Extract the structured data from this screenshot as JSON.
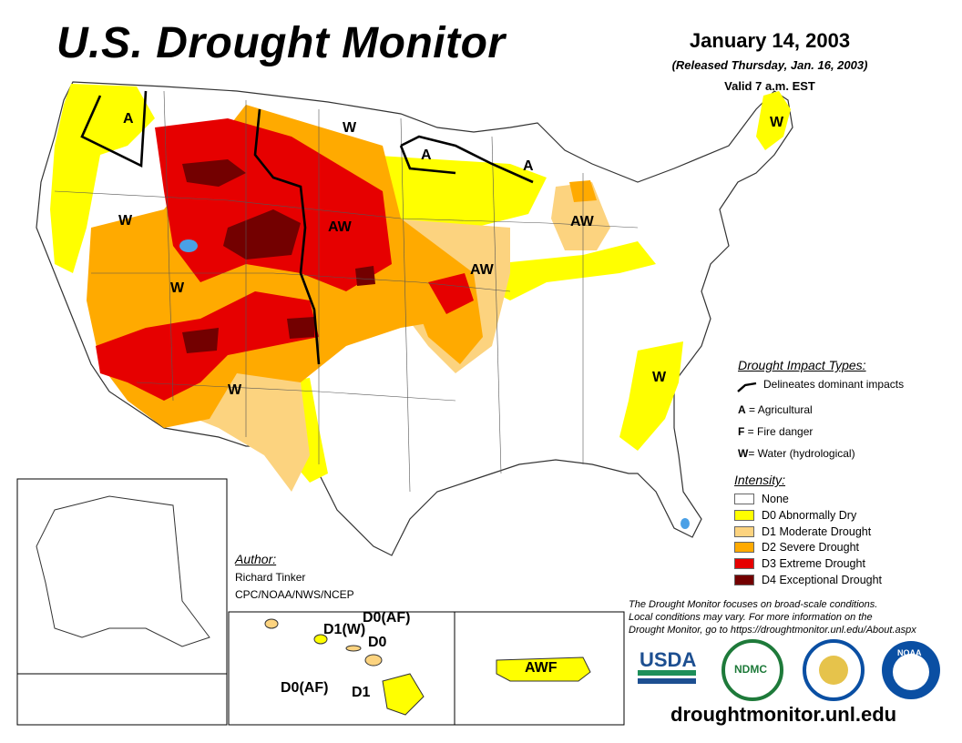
{
  "header": {
    "title": "U.S. Drought Monitor",
    "date": "January 14, 2003",
    "released": "(Released Thursday, Jan. 16, 2003)",
    "valid": "Valid 7 a.m. EST"
  },
  "map_labels": {
    "a_montana": "A",
    "w_north_dakota": "W",
    "a_minnesota": "A",
    "a_upper_michigan": "A",
    "w_maine": "W",
    "w_oregon": "W",
    "aw_nebraska": "AW",
    "aw_michigan": "AW",
    "aw_iowa": "AW",
    "w_nevada": "W",
    "w_new_mexico": "W",
    "w_carolinas": "W"
  },
  "hawaii_labels": {
    "d0_af_top": "D0(AF)",
    "d1_w": "D1(W)",
    "d0": "D0",
    "d0_af_bottom": "D0(AF)",
    "d1": "D1"
  },
  "puerto_rico_label": "AWF",
  "impact_types": {
    "title": "Drought Impact Types:",
    "delineates": "Delineates dominant impacts",
    "items": [
      {
        "key": "A",
        "sep": " = ",
        "desc": "Agricultural"
      },
      {
        "key": "F",
        "sep": " = ",
        "desc": "Fire danger"
      },
      {
        "key": "W",
        "sep": "= ",
        "desc": "Water (hydrological)"
      }
    ]
  },
  "intensity": {
    "title": "Intensity:",
    "levels": [
      {
        "label": "None",
        "color": "#ffffff"
      },
      {
        "label": "D0 Abnormally Dry",
        "color": "#ffff00"
      },
      {
        "label": "D1 Moderate Drought",
        "color": "#fcd37f"
      },
      {
        "label": "D2 Severe Drought",
        "color": "#ffaa00"
      },
      {
        "label": "D3 Extreme Drought",
        "color": "#e60000"
      },
      {
        "label": "D4 Exceptional Drought",
        "color": "#730000"
      }
    ]
  },
  "author": {
    "title": "Author:",
    "name": "Richard Tinker",
    "org": "CPC/NOAA/NWS/NCEP"
  },
  "note": {
    "line1": "The Drought Monitor focuses on broad-scale conditions.",
    "line2": "Local conditions may vary. For more information on the",
    "line3": "Drought Monitor, go to https://droughtmonitor.unl.edu/About.aspx"
  },
  "logos": {
    "usda": "USDA",
    "ndmc": "NDMC",
    "noaa": "NOAA"
  },
  "url": "droughtmonitor.unl.edu",
  "colors": {
    "none": "#ffffff",
    "d0": "#ffff00",
    "d1": "#fcd37f",
    "d2": "#ffaa00",
    "d3": "#e60000",
    "d4": "#730000",
    "water": "#4aa0e6",
    "usda_blue": "#1d4f91",
    "usda_green": "#1d8f5a",
    "ndmc_green": "#1e7a3a",
    "noaa_blue": "#0a4fa3"
  }
}
